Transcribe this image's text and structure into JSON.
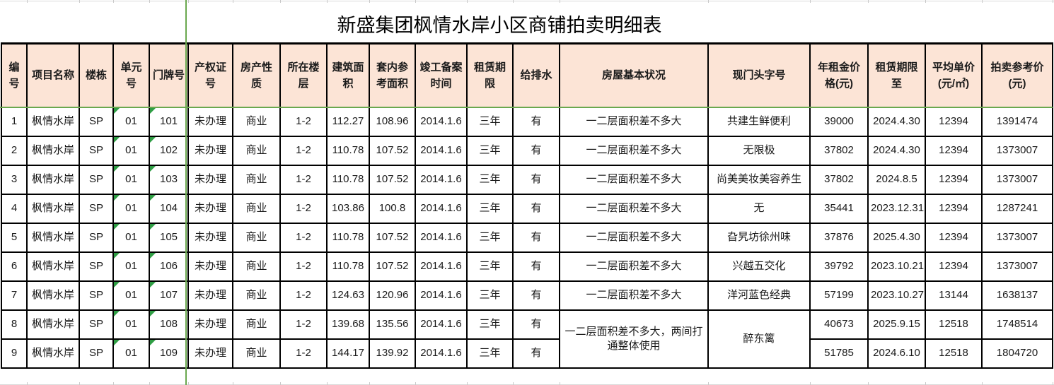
{
  "title": "新盛集团枫情水岸小区商铺拍卖明细表",
  "colors": {
    "header_fill": "#FCE4D6",
    "cell_border": "#000000",
    "page_break_green": "#6AA84F",
    "indicator_triangle_green": "#2F9E44",
    "gridline_gray": "#D9D9D9"
  },
  "icons": {
    "text_as_number_indicator": "green-triangle-icon"
  },
  "table": {
    "columns": [
      {
        "key": "id",
        "label": "编号"
      },
      {
        "key": "project_name",
        "label": "项目名称"
      },
      {
        "key": "building",
        "label": "楼栋"
      },
      {
        "key": "unit_no",
        "label": "单元号"
      },
      {
        "key": "door_no",
        "label": "门牌号"
      },
      {
        "key": "cert_no",
        "label": "产权证号"
      },
      {
        "key": "property_type",
        "label": "房产性质"
      },
      {
        "key": "floor",
        "label": "所在楼层"
      },
      {
        "key": "building_area",
        "label": "建筑面积"
      },
      {
        "key": "inner_area",
        "label": "套内参考面积"
      },
      {
        "key": "completion_date",
        "label": "竣工备案时间"
      },
      {
        "key": "lease_term",
        "label": "租赁期限"
      },
      {
        "key": "water_drainage",
        "label": "给排水"
      },
      {
        "key": "condition",
        "label": "房屋基本状况"
      },
      {
        "key": "shop_sign",
        "label": "现门头字号"
      },
      {
        "key": "annual_rent",
        "label": "年租金价格(元)"
      },
      {
        "key": "lease_until",
        "label": "租赁期限至"
      },
      {
        "key": "avg_unit_price",
        "label": "平均单价(元/㎡)"
      },
      {
        "key": "auction_ref_price",
        "label": "拍卖参考价(元)"
      }
    ],
    "rows": [
      [
        "1",
        "枫情水岸",
        "SP",
        "01",
        "101",
        "未办理",
        "商业",
        "1-2",
        "112.27",
        "108.96",
        "2014.1.6",
        "三年",
        "有",
        "一二层面积差不多大",
        "共建生鲜便利",
        "39000",
        "2024.4.30",
        "12394",
        "1391474"
      ],
      [
        "2",
        "枫情水岸",
        "SP",
        "01",
        "102",
        "未办理",
        "商业",
        "1-2",
        "110.78",
        "107.52",
        "2014.1.6",
        "三年",
        "有",
        "一二层面积差不多大",
        "无限极",
        "37802",
        "2024.4.30",
        "12394",
        "1373007"
      ],
      [
        "3",
        "枫情水岸",
        "SP",
        "01",
        "103",
        "未办理",
        "商业",
        "1-2",
        "110.78",
        "107.52",
        "2014.1.6",
        "三年",
        "有",
        "一二层面积差不多大",
        "尚美美妆美容养生",
        "37802",
        "2024.8.5",
        "12394",
        "1373007"
      ],
      [
        "4",
        "枫情水岸",
        "SP",
        "01",
        "104",
        "未办理",
        "商业",
        "1-2",
        "103.86",
        "100.8",
        "2014.1.6",
        "三年",
        "有",
        "一二层面积差不多大",
        "无",
        "35441",
        "2023.12.31",
        "12394",
        "1287241"
      ],
      [
        "5",
        "枫情水岸",
        "SP",
        "01",
        "105",
        "未办理",
        "商业",
        "1-2",
        "110.78",
        "107.52",
        "2014.1.6",
        "三年",
        "有",
        "一二层面积差不多大",
        "旮旯坊徐州味",
        "37876",
        "2025.4.30",
        "12394",
        "1373007"
      ],
      [
        "6",
        "枫情水岸",
        "SP",
        "01",
        "106",
        "未办理",
        "商业",
        "1-2",
        "110.78",
        "107.52",
        "2014.1.6",
        "三年",
        "有",
        "一二层面积差不多大",
        "兴越五交化",
        "39792",
        "2023.10.21",
        "12394",
        "1373007"
      ],
      [
        "7",
        "枫情水岸",
        "SP",
        "01",
        "107",
        "未办理",
        "商业",
        "1-2",
        "124.63",
        "120.96",
        "2014.1.6",
        "三年",
        "有",
        "一二层面积差不多大",
        "洋河蓝色经典",
        "57199",
        "2023.10.27",
        "13144",
        "1638137"
      ],
      [
        "8",
        "枫情水岸",
        "SP",
        "01",
        "108",
        "未办理",
        "商业",
        "1-2",
        "139.68",
        "135.56",
        "2014.1.6",
        "三年",
        "有",
        "一二层面积差不多大，两间打通整体使用",
        "醉东篱",
        "40673",
        "2025.9.15",
        "12518",
        "1748514"
      ],
      [
        "9",
        "枫情水岸",
        "SP",
        "01",
        "109",
        "未办理",
        "商业",
        "1-2",
        "144.17",
        "139.92",
        "2014.1.6",
        "三年",
        "有",
        null,
        null,
        "51785",
        "2024.6.10",
        "12518",
        "1804720"
      ]
    ],
    "indicator_columns": [
      "unit_no",
      "door_no"
    ]
  }
}
